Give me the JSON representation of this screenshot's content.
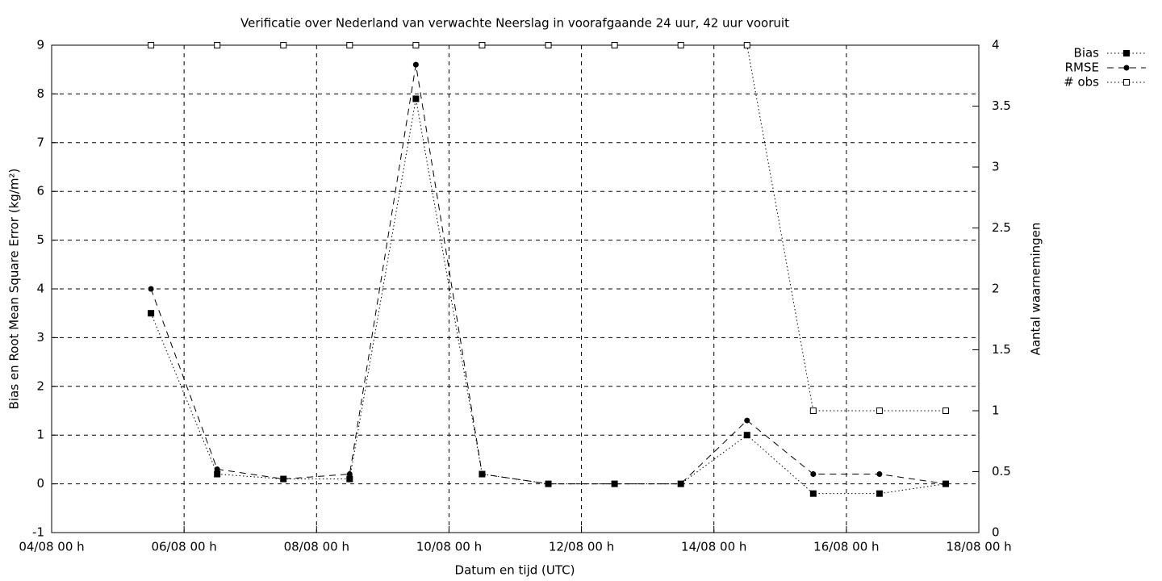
{
  "chart_data": {
    "type": "line",
    "title": "Verificatie over Nederland van verwachte Neerslag in voorafgaande 24 uur, 42 uur vooruit",
    "x_label": "Datum en tijd (UTC)",
    "y_label": "Bias en Root Mean Square Error (kg/m²)",
    "y2_label": "Aantal waarnemingen",
    "x": [
      "05/08 12 h",
      "06/08 12 h",
      "07/08 12 h",
      "08/08 12 h",
      "09/08 12 h",
      "10/08 12 h",
      "11/08 12 h",
      "12/08 12 h",
      "13/08 12 h",
      "14/08 12 h",
      "15/08 12 h",
      "16/08 12 h",
      "17/08 12 h"
    ],
    "xlim": [
      "04/08 00 h",
      "18/08 00 h"
    ],
    "xticks": [
      "04/08 00 h",
      "06/08 00 h",
      "08/08 00 h",
      "10/08 00 h",
      "12/08 00 h",
      "14/08 00 h",
      "16/08 00 h",
      "18/08 00 h"
    ],
    "ylim": [
      -1,
      9
    ],
    "yticks": [
      -1,
      0,
      1,
      2,
      3,
      4,
      5,
      6,
      7,
      8,
      9
    ],
    "y2lim": [
      0,
      4
    ],
    "y2ticks": [
      0,
      0.5,
      1,
      1.5,
      2,
      2.5,
      3,
      3.5,
      4
    ],
    "grid": true,
    "legend": "top-right-outside",
    "series": [
      {
        "name": "Bias",
        "color": "#000000",
        "line_style": "dotted",
        "marker": "square-filled",
        "values": [
          3.5,
          0.2,
          0.1,
          0.1,
          7.9,
          0.2,
          0,
          0,
          0,
          1.0,
          -0.2,
          -0.2,
          0
        ]
      },
      {
        "name": "RMSE",
        "color": "#000000",
        "line_style": "dashed",
        "marker": "circle-filled",
        "values": [
          4.0,
          0.3,
          0.1,
          0.2,
          8.6,
          0.2,
          0,
          0,
          0,
          1.3,
          0.2,
          0.2,
          0
        ]
      },
      {
        "name": "# obs",
        "color": "#000000",
        "line_style": "dotted",
        "marker": "square-open",
        "axis": "y2",
        "values": [
          4,
          4,
          4,
          4,
          4,
          4,
          4,
          4,
          4,
          4,
          1,
          1,
          1
        ]
      }
    ]
  }
}
